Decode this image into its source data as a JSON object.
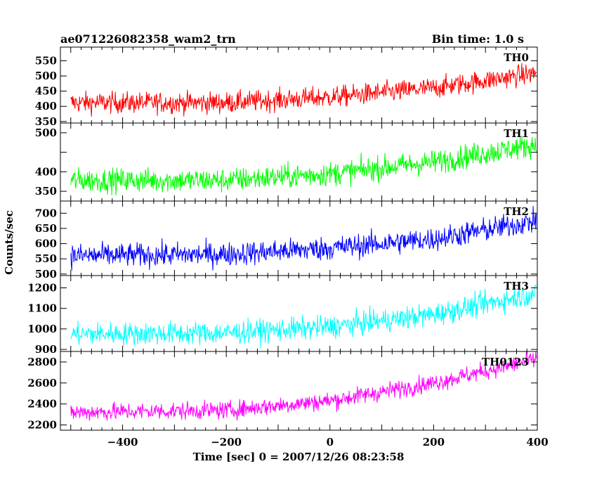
{
  "header": {
    "title": "ae071226082358_wam2_trn",
    "bin_time": "Bin time: 1.0 s"
  },
  "chart_data": {
    "type": "line",
    "ylabel": "Counts/sec",
    "xlabel": "Time [sec] 0 = 2007/12/26 08:23:58",
    "xlim": [
      -520,
      400
    ],
    "x_ticks": [
      -400,
      -200,
      0,
      200,
      400
    ],
    "x_tick_labels": [
      "−400",
      "−200",
      "0",
      "200",
      "400"
    ],
    "x_range": [
      -500,
      398
    ],
    "panels": [
      {
        "name": "TH0",
        "color": "#ff0000",
        "ylim": [
          345,
          595
        ],
        "y_ticks": [
          350,
          400,
          450,
          500,
          550
        ],
        "y_tick_labels": [
          "350",
          "400",
          "450",
          "500",
          "550"
        ],
        "trend_x": [
          -500,
          -200,
          0,
          200,
          400
        ],
        "trend_y": [
          412,
          412,
          430,
          460,
          510
        ],
        "noise": 25
      },
      {
        "name": "TH1",
        "color": "#00ff00",
        "ylim": [
          325,
          525
        ],
        "y_ticks": [
          350,
          400,
          450,
          500
        ],
        "y_tick_labels": [
          "350",
          "400",
          "",
          "500"
        ],
        "trend_x": [
          -500,
          -200,
          0,
          200,
          400
        ],
        "trend_y": [
          378,
          378,
          395,
          425,
          470
        ],
        "noise": 22
      },
      {
        "name": "TH2",
        "color": "#0000ff",
        "ylim": [
          495,
          740
        ],
        "y_ticks": [
          500,
          550,
          600,
          650,
          700
        ],
        "y_tick_labels": [
          "500",
          "550",
          "600",
          "650",
          "700"
        ],
        "trend_x": [
          -500,
          -200,
          0,
          200,
          400
        ],
        "trend_y": [
          560,
          565,
          585,
          615,
          675
        ],
        "noise": 28
      },
      {
        "name": "TH3",
        "color": "#00ffff",
        "ylim": [
          890,
          1260
        ],
        "y_ticks": [
          900,
          1000,
          1100,
          1200
        ],
        "y_tick_labels": [
          "900",
          "1000",
          "1100",
          "1200"
        ],
        "trend_x": [
          -500,
          -200,
          0,
          200,
          400
        ],
        "trend_y": [
          975,
          980,
          1010,
          1070,
          1175
        ],
        "noise": 40
      },
      {
        "name": "TH0123",
        "color": "#ff00ff",
        "ylim": [
          2150,
          2900
        ],
        "y_ticks": [
          2200,
          2400,
          2600,
          2800
        ],
        "y_tick_labels": [
          "2200",
          "2400",
          "2600",
          "2800"
        ],
        "trend_x": [
          -500,
          -200,
          0,
          200,
          400
        ],
        "trend_y": [
          2320,
          2340,
          2430,
          2600,
          2830
        ],
        "noise": 60
      }
    ]
  }
}
